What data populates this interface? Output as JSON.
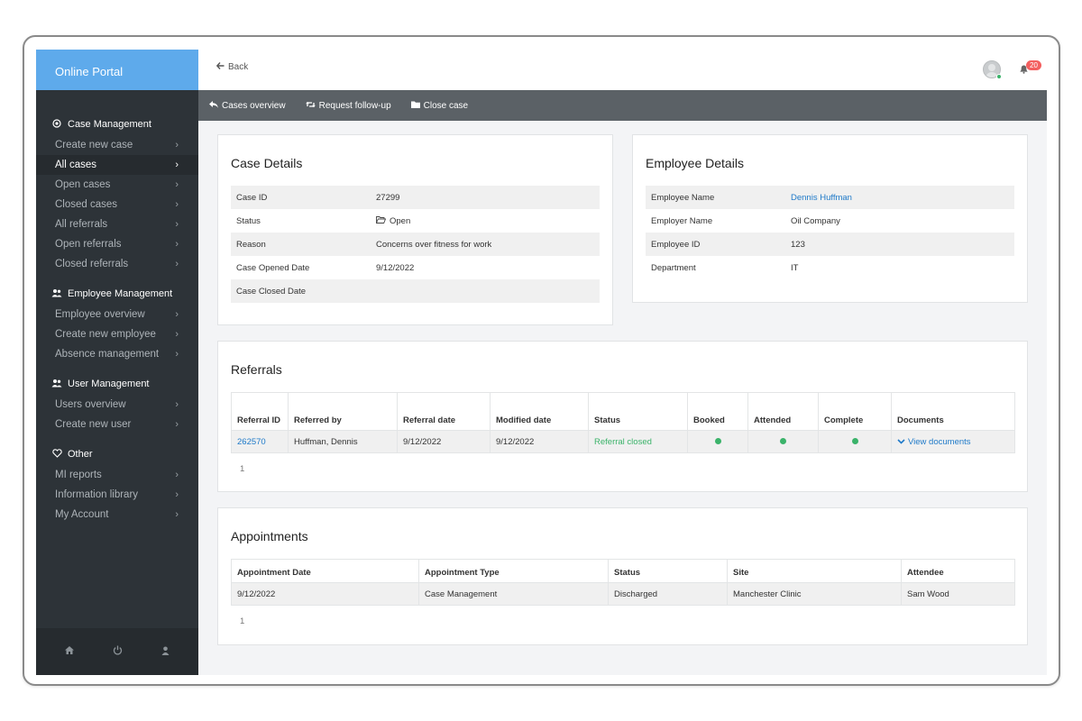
{
  "app": {
    "brand": "Online Portal"
  },
  "sidebar": {
    "sections": [
      {
        "title": "Case Management",
        "icon": "circle-dot-icon",
        "items": [
          {
            "label": "Create new case"
          },
          {
            "label": "All cases",
            "active": true
          },
          {
            "label": "Open cases"
          },
          {
            "label": "Closed cases"
          },
          {
            "label": "All referrals"
          },
          {
            "label": "Open referrals"
          },
          {
            "label": "Closed referrals"
          }
        ]
      },
      {
        "title": "Employee Management",
        "icon": "users-icon",
        "items": [
          {
            "label": "Employee overview"
          },
          {
            "label": "Create new employee"
          },
          {
            "label": "Absence management"
          }
        ]
      },
      {
        "title": "User Management",
        "icon": "users-icon",
        "items": [
          {
            "label": "Users overview"
          },
          {
            "label": "Create new user"
          }
        ]
      },
      {
        "title": "Other",
        "icon": "heart-icon",
        "items": [
          {
            "label": "MI reports"
          },
          {
            "label": "Information library"
          },
          {
            "label": "My Account"
          }
        ]
      }
    ],
    "footer_icons": [
      "home-icon",
      "power-icon",
      "user-icon"
    ]
  },
  "topbar": {
    "back_label": "Back",
    "notification_count": "20"
  },
  "toolbar": {
    "cases_overview": "Cases overview",
    "request_follow_up": "Request follow-up",
    "close_case": "Close case"
  },
  "case_details": {
    "title": "Case Details",
    "rows": [
      {
        "label": "Case ID",
        "value": "27299"
      },
      {
        "label": "Status",
        "value": "Open"
      },
      {
        "label": "Reason",
        "value": "Concerns over fitness for work"
      },
      {
        "label": "Case Opened Date",
        "value": "9/12/2022"
      },
      {
        "label": "Case Closed Date",
        "value": ""
      }
    ]
  },
  "employee_details": {
    "title": "Employee Details",
    "rows": [
      {
        "label": "Employee Name",
        "value": "Dennis Huffman"
      },
      {
        "label": "Employer Name",
        "value": "Oil Company"
      },
      {
        "label": "Employee ID",
        "value": "123"
      },
      {
        "label": "Department",
        "value": "IT"
      }
    ]
  },
  "referrals": {
    "title": "Referrals",
    "columns": [
      "Referral ID",
      "Referred by",
      "Referral date",
      "Modified date",
      "Status",
      "Booked",
      "Attended",
      "Complete",
      "Documents"
    ],
    "rows": [
      {
        "id": "262570",
        "referred_by": "Huffman, Dennis",
        "referral_date": "9/12/2022",
        "modified_date": "9/12/2022",
        "status": "Referral closed",
        "booked": true,
        "attended": true,
        "complete": true,
        "documents": "View documents"
      }
    ],
    "page": "1"
  },
  "appointments": {
    "title": "Appointments",
    "columns": [
      "Appointment Date",
      "Appointment Type",
      "Status",
      "Site",
      "Attendee"
    ],
    "rows": [
      {
        "date": "9/12/2022",
        "type": "Case Management",
        "status": "Discharged",
        "site": "Manchester Clinic",
        "attendee": "Sam Wood"
      }
    ],
    "page": "1"
  },
  "colors": {
    "brand": "#5eaaeb",
    "sidebar": "#2d3338",
    "toolbar": "#5b6166",
    "link": "#1f7ac9",
    "success": "#3bb36a",
    "badge": "#f36060"
  }
}
